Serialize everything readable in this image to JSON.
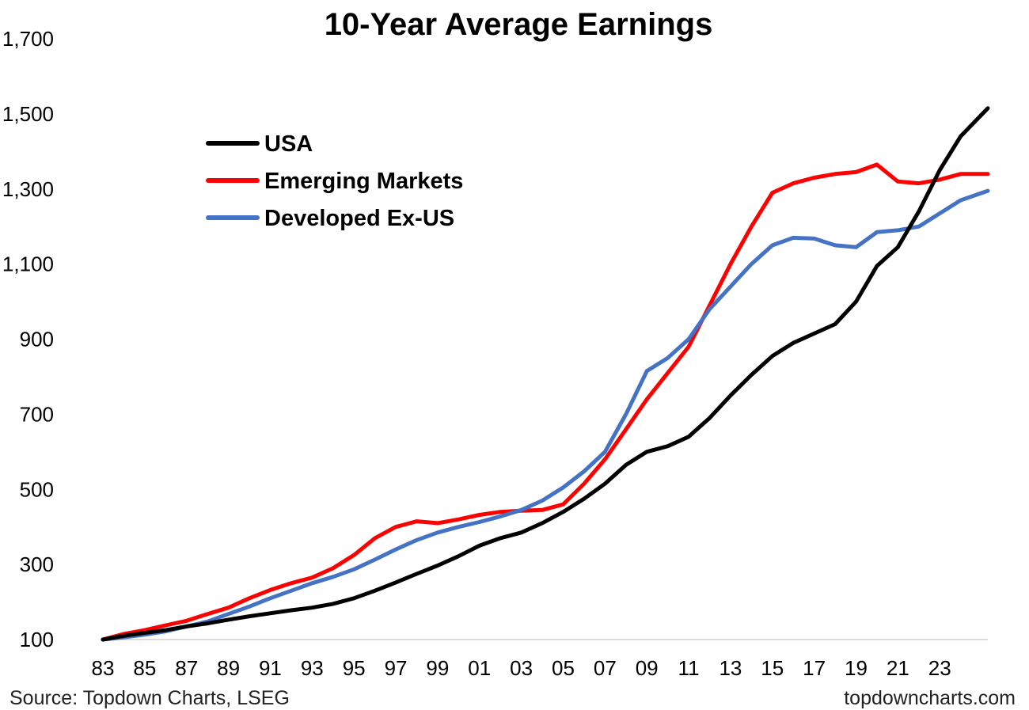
{
  "chart_data": {
    "type": "line",
    "title": "10-Year Average Earnings",
    "xlabel": "",
    "ylabel": "",
    "ylim": [
      100,
      1700
    ],
    "yticks": [
      "1,700",
      "1,500",
      "1,300",
      "1,100",
      "900",
      "700",
      "500",
      "300",
      "100"
    ],
    "ytick_values": [
      1700,
      1500,
      1300,
      1100,
      900,
      700,
      500,
      300,
      100
    ],
    "xlim": [
      1983,
      2025.3
    ],
    "xticks": [
      "83",
      "85",
      "87",
      "89",
      "91",
      "93",
      "95",
      "97",
      "99",
      "01",
      "03",
      "05",
      "07",
      "09",
      "11",
      "13",
      "15",
      "17",
      "19",
      "21",
      "23"
    ],
    "xtick_values": [
      1983,
      1985,
      1987,
      1989,
      1991,
      1993,
      1995,
      1997,
      1999,
      2001,
      2003,
      2005,
      2007,
      2009,
      2011,
      2013,
      2015,
      2017,
      2019,
      2021,
      2023
    ],
    "legend_position": "top-left",
    "series": [
      {
        "name": "USA",
        "color": "#000000",
        "points": [
          [
            1983,
            100
          ],
          [
            1984,
            110
          ],
          [
            1985,
            118
          ],
          [
            1986,
            125
          ],
          [
            1987,
            135
          ],
          [
            1988,
            143
          ],
          [
            1989,
            153
          ],
          [
            1990,
            162
          ],
          [
            1991,
            170
          ],
          [
            1992,
            178
          ],
          [
            1993,
            185
          ],
          [
            1994,
            195
          ],
          [
            1995,
            210
          ],
          [
            1996,
            230
          ],
          [
            1997,
            252
          ],
          [
            1998,
            275
          ],
          [
            1999,
            297
          ],
          [
            2000,
            322
          ],
          [
            2001,
            350
          ],
          [
            2002,
            370
          ],
          [
            2003,
            385
          ],
          [
            2004,
            410
          ],
          [
            2005,
            440
          ],
          [
            2006,
            475
          ],
          [
            2007,
            515
          ],
          [
            2008,
            565
          ],
          [
            2009,
            600
          ],
          [
            2010,
            615
          ],
          [
            2011,
            640
          ],
          [
            2012,
            690
          ],
          [
            2013,
            750
          ],
          [
            2014,
            805
          ],
          [
            2015,
            855
          ],
          [
            2016,
            890
          ],
          [
            2017,
            915
          ],
          [
            2018,
            940
          ],
          [
            2019,
            1000
          ],
          [
            2020,
            1095
          ],
          [
            2021,
            1145
          ],
          [
            2022,
            1240
          ],
          [
            2023,
            1350
          ],
          [
            2024,
            1440
          ],
          [
            2025.3,
            1515
          ]
        ]
      },
      {
        "name": "Emerging Markets",
        "color": "#ff0000",
        "points": [
          [
            1983,
            100
          ],
          [
            1984,
            115
          ],
          [
            1985,
            125
          ],
          [
            1986,
            138
          ],
          [
            1987,
            150
          ],
          [
            1988,
            168
          ],
          [
            1989,
            185
          ],
          [
            1990,
            210
          ],
          [
            1991,
            232
          ],
          [
            1992,
            250
          ],
          [
            1993,
            265
          ],
          [
            1994,
            290
          ],
          [
            1995,
            325
          ],
          [
            1996,
            370
          ],
          [
            1997,
            400
          ],
          [
            1998,
            415
          ],
          [
            1999,
            410
          ],
          [
            2000,
            420
          ],
          [
            2001,
            432
          ],
          [
            2002,
            440
          ],
          [
            2003,
            443
          ],
          [
            2004,
            445
          ],
          [
            2005,
            460
          ],
          [
            2006,
            515
          ],
          [
            2007,
            580
          ],
          [
            2008,
            660
          ],
          [
            2009,
            740
          ],
          [
            2010,
            810
          ],
          [
            2011,
            880
          ],
          [
            2012,
            990
          ],
          [
            2013,
            1100
          ],
          [
            2014,
            1200
          ],
          [
            2015,
            1290
          ],
          [
            2016,
            1315
          ],
          [
            2017,
            1330
          ],
          [
            2018,
            1340
          ],
          [
            2019,
            1345
          ],
          [
            2020,
            1365
          ],
          [
            2021,
            1320
          ],
          [
            2022,
            1315
          ],
          [
            2023,
            1325
          ],
          [
            2024,
            1340
          ],
          [
            2025.3,
            1340
          ]
        ]
      },
      {
        "name": "Developed Ex-US",
        "color": "#4472c4",
        "points": [
          [
            1983,
            100
          ],
          [
            1984,
            106
          ],
          [
            1985,
            113
          ],
          [
            1986,
            122
          ],
          [
            1987,
            135
          ],
          [
            1988,
            148
          ],
          [
            1989,
            168
          ],
          [
            1990,
            188
          ],
          [
            1991,
            210
          ],
          [
            1992,
            230
          ],
          [
            1993,
            250
          ],
          [
            1994,
            267
          ],
          [
            1995,
            287
          ],
          [
            1996,
            313
          ],
          [
            1997,
            340
          ],
          [
            1998,
            365
          ],
          [
            1999,
            385
          ],
          [
            2000,
            400
          ],
          [
            2001,
            413
          ],
          [
            2002,
            428
          ],
          [
            2003,
            445
          ],
          [
            2004,
            470
          ],
          [
            2005,
            505
          ],
          [
            2006,
            548
          ],
          [
            2007,
            600
          ],
          [
            2008,
            700
          ],
          [
            2009,
            815
          ],
          [
            2010,
            850
          ],
          [
            2011,
            900
          ],
          [
            2012,
            980
          ],
          [
            2013,
            1040
          ],
          [
            2014,
            1100
          ],
          [
            2015,
            1150
          ],
          [
            2016,
            1170
          ],
          [
            2017,
            1168
          ],
          [
            2018,
            1150
          ],
          [
            2019,
            1145
          ],
          [
            2020,
            1185
          ],
          [
            2021,
            1190
          ],
          [
            2022,
            1200
          ],
          [
            2023,
            1235
          ],
          [
            2024,
            1270
          ],
          [
            2025.3,
            1295
          ]
        ]
      }
    ]
  },
  "footer": {
    "source": "Source: Topdown Charts, LSEG",
    "website": "topdowncharts.com"
  }
}
